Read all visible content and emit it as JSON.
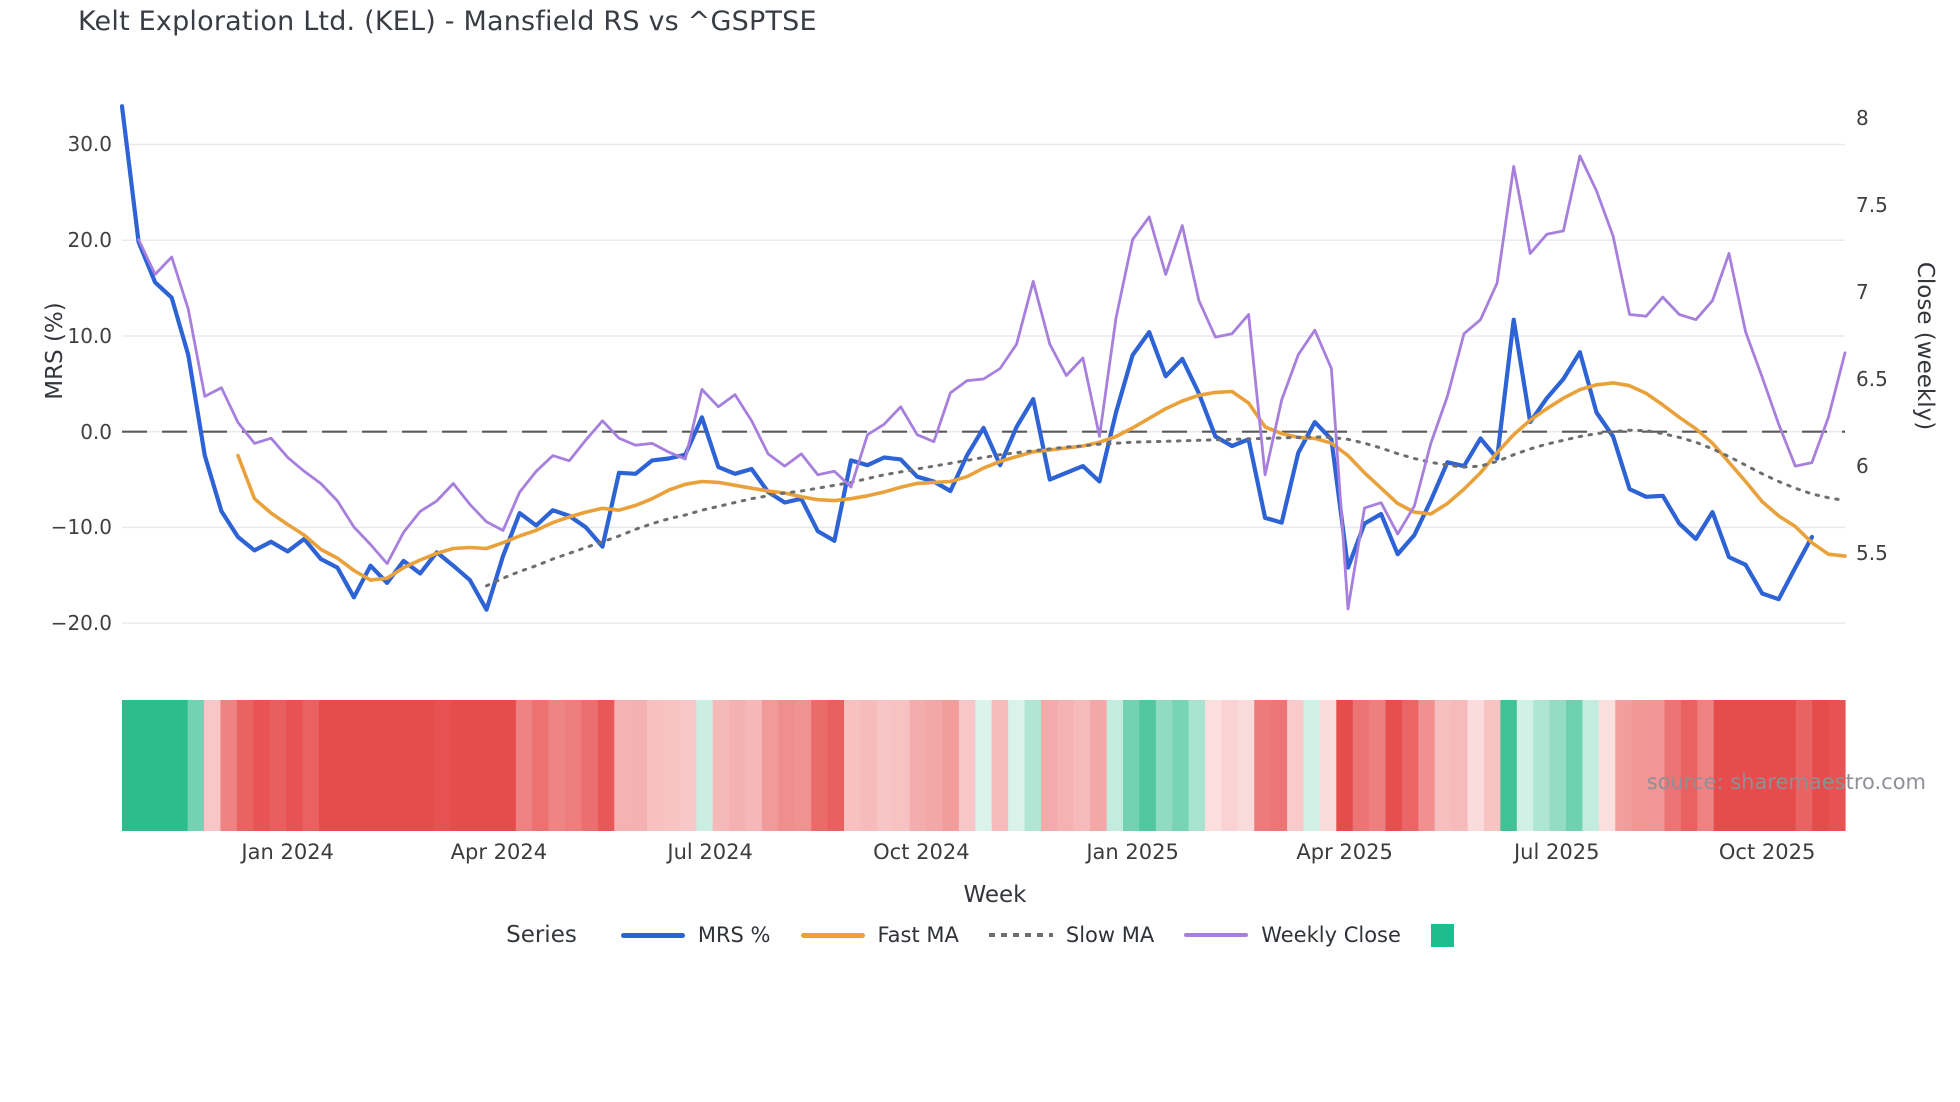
{
  "title": "Kelt Exploration Ltd. (KEL) - Mansfield RS vs ^GSPTSE",
  "source": "source: sharemaestro.com",
  "axes": {
    "left": {
      "label": "MRS (%)",
      "tick_labels": [
        "30.0",
        "20.0",
        "10.0",
        "0.0",
        "−10.0",
        "−20.0"
      ],
      "tick_values": [
        30,
        20,
        10,
        0,
        -10,
        -20
      ]
    },
    "right": {
      "label": "Close (weekly)",
      "tick_labels": [
        "8",
        "7.5",
        "7",
        "6.5",
        "6",
        "5.5"
      ],
      "tick_values": [
        8,
        7.5,
        7,
        6.5,
        6,
        5.5
      ]
    },
    "x": {
      "label": "Week",
      "tick_labels": [
        "Jan 2024",
        "Apr 2024",
        "Jul 2024",
        "Oct 2024",
        "Jan 2025",
        "Apr 2025",
        "Jul 2025",
        "Oct 2025"
      ],
      "tick_weeks": [
        10,
        22.75,
        35.5,
        48.25,
        61,
        73.8,
        86.6,
        99.3
      ]
    }
  },
  "legend": {
    "title": "Series",
    "items": [
      {
        "label": "MRS %",
        "color": "#2d63d4",
        "style": "solid"
      },
      {
        "label": "Fast MA",
        "color": "#e9a23b",
        "style": "solid"
      },
      {
        "label": "Slow MA",
        "color": "#6e6e6e",
        "style": "dotted"
      },
      {
        "label": "Weekly Close",
        "color": "#a77fdd",
        "style": "thin"
      },
      {
        "label": "",
        "color": "#1fbc8f",
        "style": "square"
      }
    ]
  },
  "chart_data": {
    "type": "line",
    "x_unit": "week_index",
    "total_weeks": 104,
    "left_axis_range": [
      -22.7,
      35.9
    ],
    "right_axis_range": [
      4.95,
      8.17
    ],
    "zero_line": {
      "value": 0,
      "axis": "left",
      "color": "#595959",
      "dashed": true
    },
    "grid": "horizontal-only",
    "series": [
      {
        "name": "MRS %",
        "axis": "left",
        "color": "#2d63d4",
        "width": 4.2,
        "dash": "",
        "start_week": 0,
        "values": [
          34,
          19.8,
          15.6,
          14,
          8,
          -2.5,
          -8.3,
          -11,
          -12.4,
          -11.5,
          -12.5,
          -11.2,
          -13.3,
          -14.2,
          -17.3,
          -14,
          -15.8,
          -13.5,
          -14.8,
          -12.6,
          -14,
          -15.5,
          -18.6,
          -13,
          -8.5,
          -9.8,
          -8.2,
          -8.8,
          -10,
          -12,
          -4.3,
          -4.4,
          -3,
          -2.8,
          -2.4,
          1.5,
          -3.7,
          -4.4,
          -3.9,
          -6.3,
          -7.4,
          -7,
          -10.4,
          -11.4,
          -3,
          -3.5,
          -2.7,
          -2.9,
          -4.7,
          -5.2,
          -6.2,
          -2.5,
          0.4,
          -3.5,
          0.5,
          3.4,
          -5,
          -4.3,
          -3.6,
          -5.2,
          2,
          8,
          10.4,
          5.8,
          7.6,
          4,
          -0.5,
          -1.5,
          -0.8,
          -9,
          -9.5,
          -2.2,
          1,
          -0.8,
          -14.2,
          -9.6,
          -8.6,
          -12.8,
          -10.8,
          -7.2,
          -3.2,
          -3.6,
          -0.7,
          -2.8,
          11.7,
          1,
          3.5,
          5.5,
          8.3,
          2,
          -0.5,
          -6,
          -6.8,
          -6.7,
          -9.6,
          -11.2,
          -8.4,
          -13.1,
          -13.9,
          -16.9,
          -17.5,
          -14.2,
          -11
        ]
      },
      {
        "name": "Fast MA",
        "axis": "left",
        "color": "#e9a23b",
        "width": 3.6,
        "dash": "",
        "start_week": 7,
        "values": [
          -2.5,
          -7,
          -8.5,
          -9.7,
          -10.8,
          -12.3,
          -13.2,
          -14.5,
          -15.5,
          -15.3,
          -14.2,
          -13.4,
          -12.7,
          -12.2,
          -12.1,
          -12.2,
          -11.6,
          -10.9,
          -10.3,
          -9.5,
          -8.9,
          -8.4,
          -8,
          -8.2,
          -7.7,
          -7,
          -6.1,
          -5.5,
          -5.2,
          -5.3,
          -5.6,
          -5.9,
          -6.2,
          -6.4,
          -6.8,
          -7.1,
          -7.2,
          -7,
          -6.7,
          -6.3,
          -5.8,
          -5.4,
          -5.3,
          -5.2,
          -4.7,
          -3.8,
          -3.1,
          -2.6,
          -2.1,
          -1.9,
          -1.7,
          -1.5,
          -1.1,
          -0.5,
          0.4,
          1.4,
          2.4,
          3.2,
          3.8,
          4.1,
          4.2,
          3,
          0.5,
          -0.2,
          -0.6,
          -0.7,
          -1.2,
          -2.5,
          -4.3,
          -5.9,
          -7.5,
          -8.4,
          -8.6,
          -7.5,
          -6,
          -4.3,
          -2.2,
          -0.3,
          1.2,
          2.4,
          3.5,
          4.4,
          4.9,
          5.1,
          4.8,
          4,
          2.8,
          1.5,
          0.3,
          -1.2,
          -3.2,
          -5.2,
          -7.3,
          -8.8,
          -9.9,
          -11.6,
          -12.8,
          -13
        ]
      },
      {
        "name": "Slow MA",
        "axis": "left",
        "color": "#6e6e6e",
        "width": 3,
        "dash": "2.5 7.5",
        "start_week": 22,
        "values": [
          -16.1,
          -15.3,
          -14.6,
          -14,
          -13.3,
          -12.7,
          -12.1,
          -11.5,
          -10.9,
          -10.2,
          -9.6,
          -9.1,
          -8.7,
          -8.2,
          -7.8,
          -7.4,
          -7,
          -6.7,
          -6.4,
          -6.2,
          -5.9,
          -5.6,
          -5.3,
          -4.9,
          -4.5,
          -4.2,
          -3.9,
          -3.6,
          -3.3,
          -3,
          -2.7,
          -2.4,
          -2.2,
          -2,
          -1.8,
          -1.6,
          -1.5,
          -1.3,
          -1.2,
          -1.1,
          -1.05,
          -1,
          -0.95,
          -0.9,
          -0.85,
          -0.8,
          -0.75,
          -0.7,
          -0.65,
          -0.6,
          -0.55,
          -0.6,
          -0.8,
          -1.2,
          -1.7,
          -2.3,
          -2.8,
          -3.2,
          -3.5,
          -3.7,
          -3.6,
          -3.1,
          -2.4,
          -1.8,
          -1.3,
          -0.9,
          -0.5,
          -0.2,
          0,
          0.15,
          0.1,
          -0.2,
          -0.6,
          -1.1,
          -1.8,
          -2.6,
          -3.5,
          -4.4,
          -5.2,
          -5.9,
          -6.5,
          -6.9,
          -7.2
        ]
      },
      {
        "name": "Weekly Close",
        "axis": "right",
        "color": "#a77fdd",
        "width": 2.8,
        "dash": "",
        "start_week": 1,
        "values": [
          7.3,
          7.1,
          7.2,
          6.9,
          6.4,
          6.45,
          6.25,
          6.13,
          6.16,
          6.05,
          5.97,
          5.9,
          5.8,
          5.65,
          5.55,
          5.44,
          5.62,
          5.74,
          5.8,
          5.9,
          5.78,
          5.68,
          5.63,
          5.85,
          5.97,
          6.06,
          6.03,
          6.15,
          6.26,
          6.16,
          6.12,
          6.13,
          6.08,
          6.04,
          6.44,
          6.34,
          6.41,
          6.26,
          6.07,
          6,
          6.07,
          5.95,
          5.97,
          5.88,
          6.18,
          6.24,
          6.34,
          6.18,
          6.14,
          6.42,
          6.49,
          6.5,
          6.56,
          6.7,
          7.06,
          6.7,
          6.52,
          6.62,
          6.17,
          6.85,
          7.3,
          7.43,
          7.1,
          7.38,
          6.95,
          6.74,
          6.76,
          6.87,
          5.95,
          6.38,
          6.64,
          6.78,
          6.56,
          5.18,
          5.76,
          5.79,
          5.61,
          5.77,
          6.13,
          6.4,
          6.76,
          6.84,
          7.05,
          7.72,
          7.22,
          7.33,
          7.35,
          7.78,
          7.58,
          7.32,
          6.87,
          6.86,
          6.97,
          6.87,
          6.84,
          6.95,
          7.22,
          6.77,
          6.51,
          6.24,
          6,
          6.02,
          6.28,
          6.65
        ]
      }
    ],
    "heatmap": {
      "description": "weekly cells colored by MRS % sign and magnitude",
      "positive_color": "#2dbc8b",
      "negative_color": "#e74c4c",
      "pad_tail_values": [
        -13.5,
        -12.5
      ]
    }
  }
}
